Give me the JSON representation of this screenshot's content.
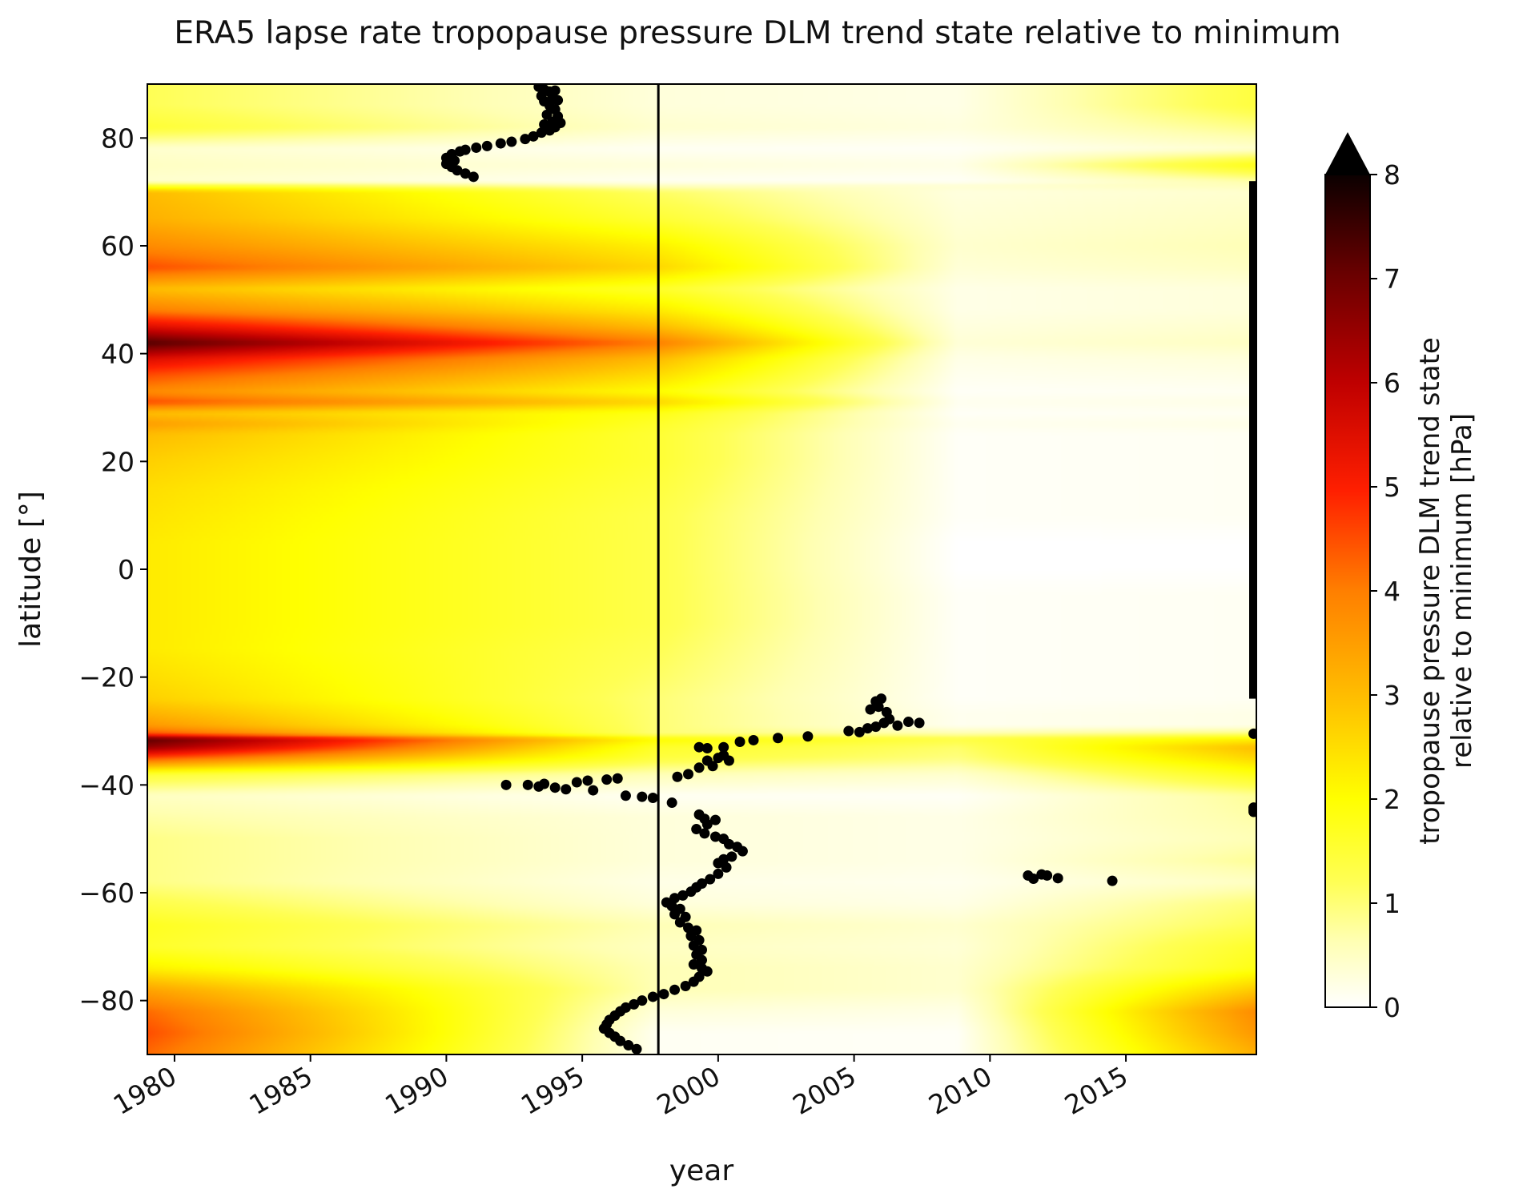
{
  "chart_data": {
    "type": "heatmap",
    "title": "ERA5 lapse rate tropopause pressure DLM trend state relative to minimum",
    "xlabel": "year",
    "ylabel": "latitude [°]",
    "xlim": [
      1979,
      2019.8
    ],
    "ylim": [
      -90,
      90
    ],
    "x_ticks": [
      1980,
      1985,
      1990,
      1995,
      2000,
      2005,
      2010,
      2015
    ],
    "y_ticks": [
      80,
      60,
      40,
      20,
      0,
      -20,
      -40,
      -60,
      -80
    ],
    "y_tick_labels": [
      "80",
      "60",
      "40",
      "20",
      "0",
      "−20",
      "−40",
      "−60",
      "−80"
    ],
    "colorbar": {
      "label_line1": "tropopause pressure DLM trend state",
      "label_line2": "relative to minimum [hPa]",
      "range": [
        0,
        8
      ],
      "ticks": [
        0,
        1,
        2,
        3,
        4,
        5,
        6,
        7,
        8
      ],
      "colormap": "hot_r",
      "extend": "max"
    },
    "vertical_line_year": 1997.8,
    "heatmap_profiles": {
      "latitudes": [
        -90,
        -86,
        -82,
        -78,
        -74,
        -70,
        -66,
        -62,
        -58,
        -54,
        -50,
        -46,
        -42,
        -38,
        -35,
        -33,
        -31.5,
        -30.5,
        -29,
        -27,
        -24,
        -20,
        -15,
        -10,
        -5,
        0,
        5,
        10,
        15,
        20,
        25,
        27,
        29,
        31,
        33,
        36,
        39,
        42,
        45,
        48,
        52,
        56,
        60,
        65,
        70,
        72,
        75,
        78,
        82,
        86,
        90
      ],
      "start_1979": [
        4.2,
        4.5,
        4.2,
        3.4,
        2.2,
        1.6,
        1.7,
        1.3,
        0.9,
        0.9,
        0.9,
        0.7,
        0.5,
        1.5,
        4.5,
        6.5,
        7.2,
        4.5,
        3.6,
        3.2,
        2.7,
        2.5,
        2.3,
        2.3,
        2.3,
        2.3,
        2.3,
        2.4,
        2.5,
        2.7,
        3.0,
        3.5,
        3.0,
        4.5,
        3.8,
        4.5,
        5.5,
        7.3,
        5.5,
        4.0,
        3.0,
        4.5,
        3.8,
        3.2,
        3.0,
        0.4,
        0.5,
        0.4,
        1.5,
        1.2,
        1.2
      ],
      "at_1998": [
        0.1,
        0.1,
        0.3,
        0.6,
        0.6,
        0.5,
        0.6,
        0.3,
        0.2,
        0.3,
        0.3,
        0.3,
        0.1,
        0.6,
        1.4,
        1.6,
        2.0,
        1.0,
        1.0,
        1.0,
        1.0,
        1.1,
        1.2,
        1.3,
        1.3,
        1.3,
        1.3,
        1.3,
        1.4,
        1.5,
        1.5,
        1.6,
        1.8,
        2.6,
        2.0,
        2.5,
        3.0,
        4.0,
        3.0,
        2.3,
        1.6,
        2.6,
        2.2,
        1.5,
        1.1,
        0.1,
        0.3,
        0.1,
        0.4,
        0.3,
        0.3
      ],
      "end_2019": [
        3.2,
        3.6,
        3.8,
        2.8,
        1.8,
        1.6,
        1.2,
        1.0,
        0.5,
        0.8,
        0.6,
        0.7,
        0.8,
        1.8,
        2.6,
        3.0,
        2.2,
        1.0,
        0.2,
        0.2,
        0.1,
        0.1,
        0.1,
        0.1,
        0.1,
        0.0,
        0.0,
        0.1,
        0.1,
        0.1,
        0.1,
        0.2,
        0.1,
        0.2,
        0.1,
        0.2,
        0.3,
        0.5,
        0.4,
        0.3,
        0.3,
        0.5,
        0.6,
        0.5,
        0.4,
        0.7,
        1.8,
        0.4,
        0.9,
        1.4,
        1.4
      ]
    },
    "scatter_points": [
      [
        1993.4,
        89.5
      ],
      [
        1993.6,
        89
      ],
      [
        1993.8,
        88.6
      ],
      [
        1994.0,
        88.8
      ],
      [
        1993.5,
        87.8
      ],
      [
        1993.9,
        87.6
      ],
      [
        1994.1,
        87
      ],
      [
        1993.6,
        86.8
      ],
      [
        1993.8,
        86
      ],
      [
        1994.0,
        85.3
      ],
      [
        1993.7,
        84.3
      ],
      [
        1994.1,
        84
      ],
      [
        1993.9,
        83
      ],
      [
        1994.2,
        82.8
      ],
      [
        1993.6,
        82.5
      ],
      [
        1994.0,
        82
      ],
      [
        1993.8,
        81.4
      ],
      [
        1993.5,
        81
      ],
      [
        1993.2,
        80.3
      ],
      [
        1992.9,
        79.8
      ],
      [
        1992.4,
        79.3
      ],
      [
        1992.0,
        79
      ],
      [
        1991.5,
        78.5
      ],
      [
        1991.1,
        78.2
      ],
      [
        1990.7,
        77.8
      ],
      [
        1990.5,
        77.5
      ],
      [
        1990.2,
        77
      ],
      [
        1990.0,
        76.3
      ],
      [
        1990.3,
        75.8
      ],
      [
        1990.0,
        75.2
      ],
      [
        1990.2,
        74.6
      ],
      [
        1990.4,
        74
      ],
      [
        1990.7,
        73.4
      ],
      [
        1991.0,
        72.8
      ],
      [
        1992.2,
        -40
      ],
      [
        1993.0,
        -40
      ],
      [
        1993.4,
        -40.3
      ],
      [
        1993.6,
        -39.8
      ],
      [
        1994.0,
        -40.5
      ],
      [
        1994.4,
        -40.8
      ],
      [
        1994.8,
        -39.5
      ],
      [
        1995.2,
        -39.2
      ],
      [
        1995.4,
        -41
      ],
      [
        1995.9,
        -39
      ],
      [
        1996.3,
        -38.8
      ],
      [
        1996.6,
        -42
      ],
      [
        1997.2,
        -42.2
      ],
      [
        1997.6,
        -42.4
      ],
      [
        1998.3,
        -43.3
      ],
      [
        1998.5,
        -38.5
      ],
      [
        1998.9,
        -38
      ],
      [
        1999.3,
        -36.8
      ],
      [
        1999.6,
        -35.5
      ],
      [
        1999.8,
        -36.5
      ],
      [
        2000.0,
        -35
      ],
      [
        2000.2,
        -34.5
      ],
      [
        2000.4,
        -35.5
      ],
      [
        1999.3,
        -33
      ],
      [
        1999.6,
        -33.2
      ],
      [
        2000.2,
        -33
      ],
      [
        2000.8,
        -32
      ],
      [
        2001.3,
        -31.7
      ],
      [
        2002.2,
        -31.3
      ],
      [
        2003.3,
        -31
      ],
      [
        2004.8,
        -30
      ],
      [
        2005.2,
        -30.2
      ],
      [
        2005.5,
        -29.5
      ],
      [
        2005.8,
        -29.2
      ],
      [
        2006.1,
        -28.5
      ],
      [
        2005.6,
        -26
      ],
      [
        2005.9,
        -25.5
      ],
      [
        2005.8,
        -24.5
      ],
      [
        2006.0,
        -24
      ],
      [
        2006.2,
        -26.5
      ],
      [
        2006.3,
        -27.8
      ],
      [
        2006.6,
        -29
      ],
      [
        2007.0,
        -28.3
      ],
      [
        2007.4,
        -28.5
      ],
      [
        1999.3,
        -45.5
      ],
      [
        1999.5,
        -46.3
      ],
      [
        1999.9,
        -46.5
      ],
      [
        1999.6,
        -47.3
      ],
      [
        1999.2,
        -48.2
      ],
      [
        1999.5,
        -49
      ],
      [
        1999.9,
        -49.6
      ],
      [
        2000.2,
        -50
      ],
      [
        2000.4,
        -51
      ],
      [
        2000.7,
        -51.5
      ],
      [
        2000.9,
        -52.3
      ],
      [
        2000.5,
        -53.3
      ],
      [
        2000.2,
        -53.8
      ],
      [
        2000.0,
        -54.5
      ],
      [
        2000.3,
        -55.3
      ],
      [
        2000.0,
        -56.5
      ],
      [
        1999.7,
        -57.5
      ],
      [
        1999.4,
        -58.3
      ],
      [
        1999.2,
        -59
      ],
      [
        1999.0,
        -59.8
      ],
      [
        1998.7,
        -60.5
      ],
      [
        1998.4,
        -61
      ],
      [
        1998.1,
        -61.8
      ],
      [
        1998.3,
        -62.5
      ],
      [
        1998.6,
        -63
      ],
      [
        1998.4,
        -64
      ],
      [
        1998.8,
        -64.5
      ],
      [
        1998.6,
        -65.5
      ],
      [
        1998.9,
        -66.5
      ],
      [
        1999.2,
        -67
      ],
      [
        1999.0,
        -68
      ],
      [
        1999.3,
        -68.8
      ],
      [
        1999.1,
        -69.8
      ],
      [
        1999.4,
        -70.6
      ],
      [
        1999.2,
        -71.5
      ],
      [
        1999.4,
        -72.5
      ],
      [
        1999.1,
        -73.3
      ],
      [
        1999.4,
        -74
      ],
      [
        1999.6,
        -74.6
      ],
      [
        1999.3,
        -75.6
      ],
      [
        1999.1,
        -76.5
      ],
      [
        1998.8,
        -77.3
      ],
      [
        1998.4,
        -78
      ],
      [
        1998.0,
        -78.8
      ],
      [
        1997.6,
        -79.3
      ],
      [
        1997.2,
        -80
      ],
      [
        1996.9,
        -80.7
      ],
      [
        1996.6,
        -81.3
      ],
      [
        1996.4,
        -82
      ],
      [
        1996.2,
        -82.8
      ],
      [
        1996.0,
        -83.6
      ],
      [
        1995.9,
        -84.4
      ],
      [
        1995.8,
        -85.2
      ],
      [
        1996.0,
        -86
      ],
      [
        1996.2,
        -86.7
      ],
      [
        1996.4,
        -87.5
      ],
      [
        1996.7,
        -88.3
      ],
      [
        1997.0,
        -89
      ],
      [
        2011.4,
        -56.8
      ],
      [
        2011.6,
        -57.4
      ],
      [
        2011.9,
        -56.6
      ],
      [
        2012.1,
        -56.8
      ],
      [
        2012.5,
        -57.3
      ],
      [
        2014.5,
        -57.8
      ],
      [
        2019.7,
        -30.5
      ],
      [
        2019.7,
        -44.2
      ],
      [
        2019.7,
        -44.6
      ],
      [
        2019.7,
        -45.0
      ]
    ],
    "right_edge_bar_lat_range": [
      -24,
      72
    ]
  }
}
